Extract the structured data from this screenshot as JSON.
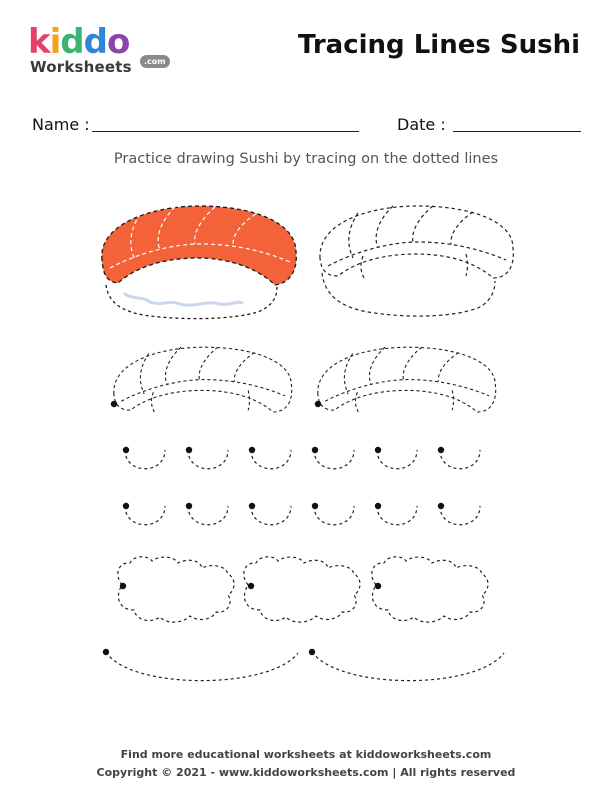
{
  "logo": {
    "letters": [
      "k",
      "i",
      "d",
      "d",
      "o"
    ],
    "letter_colors": [
      "#e83e6a",
      "#f4a11d",
      "#3cb371",
      "#2f86d6",
      "#8e44ad"
    ],
    "subtitle": "Worksheets",
    "domain_badge": ".com"
  },
  "title": "Tracing Lines Sushi",
  "fields": {
    "name_label": "Name :",
    "date_label": "Date :"
  },
  "instruction": "Practice drawing Sushi by tracing on the dotted lines",
  "colors": {
    "salmon": "#f4623a",
    "stroke": "#222222",
    "rice_accent": "#c9d8ee"
  },
  "footer": {
    "line1": "Find more educational worksheets at kiddoworksheets.com",
    "line2": "Copyright © 2021 - www.kiddoworksheets.com  |  All rights reserved"
  }
}
